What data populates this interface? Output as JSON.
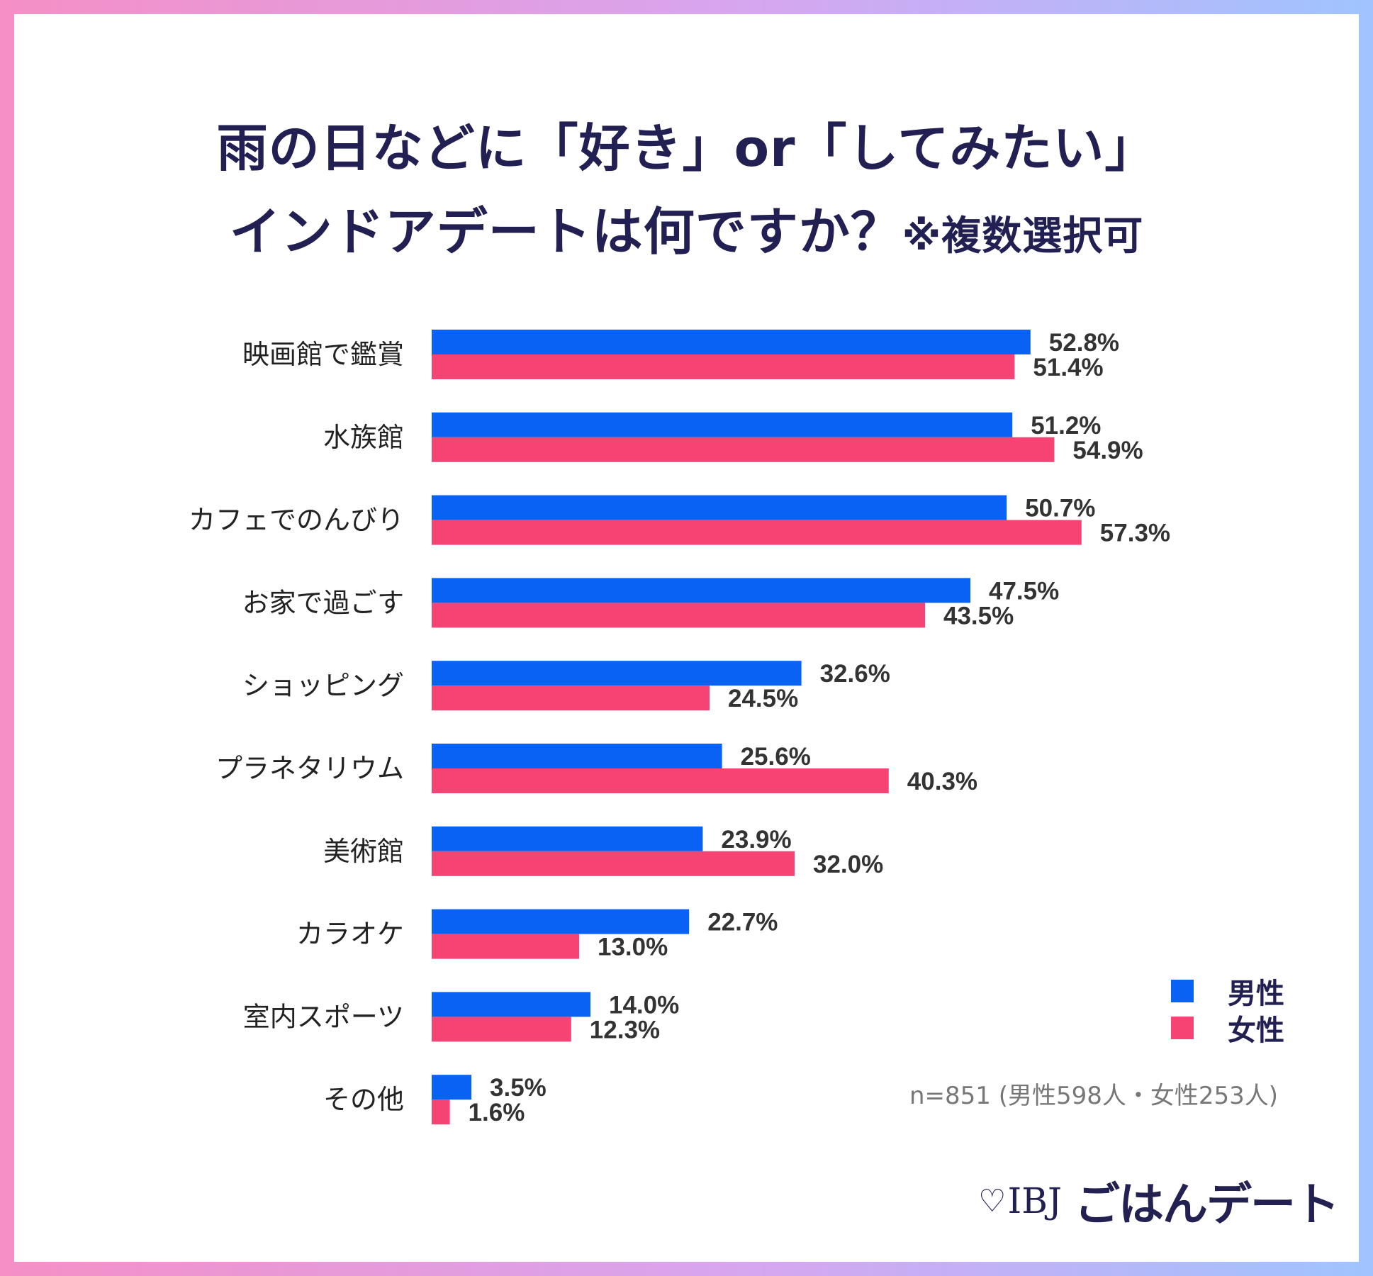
{
  "title": {
    "line1": "雨の日などに「好き」or「してみたい」",
    "line2": "インドアデートは何ですか？",
    "note": "※複数選択可"
  },
  "colors": {
    "male": "#0a62f4",
    "female": "#f54474",
    "title": "#222052",
    "text": "#222222",
    "value": "#333333",
    "note": "#777777"
  },
  "legend": {
    "male": "男性",
    "female": "女性"
  },
  "sample_note": "n=851 (男性598人・女性253人)",
  "logo": {
    "mark": "IBJ",
    "brand": "ごはんデート"
  },
  "chart_data": {
    "type": "bar",
    "orientation": "horizontal",
    "title": "雨の日などに「好き」or「してみたい」インドアデートは何ですか？※複数選択可",
    "categories": [
      "映画館で鑑賞",
      "水族館",
      "カフェでのんびり",
      "お家で過ごす",
      "ショッピング",
      "プラネタリウム",
      "美術館",
      "カラオケ",
      "室内スポーツ",
      "その他"
    ],
    "series": [
      {
        "name": "男性",
        "values": [
          52.8,
          51.2,
          50.7,
          47.5,
          32.6,
          25.6,
          23.9,
          22.7,
          14.0,
          3.5
        ],
        "labels": [
          "52.8%",
          "51.2%",
          "50.7%",
          "47.5%",
          "32.6%",
          "25.6%",
          "23.9%",
          "22.7%",
          "14.0%",
          "3.5%"
        ]
      },
      {
        "name": "女性",
        "values": [
          51.4,
          54.9,
          57.3,
          43.5,
          24.5,
          40.3,
          32.0,
          13.0,
          12.3,
          1.6
        ],
        "labels": [
          "51.4%",
          "54.9%",
          "57.3%",
          "43.5%",
          "24.5%",
          "40.3%",
          "32.0%",
          "13.0%",
          "12.3%",
          "1.6%"
        ]
      }
    ],
    "xlim": [
      0,
      100
    ],
    "grid": false,
    "legend_position": "bottom-right",
    "unit": "%"
  }
}
